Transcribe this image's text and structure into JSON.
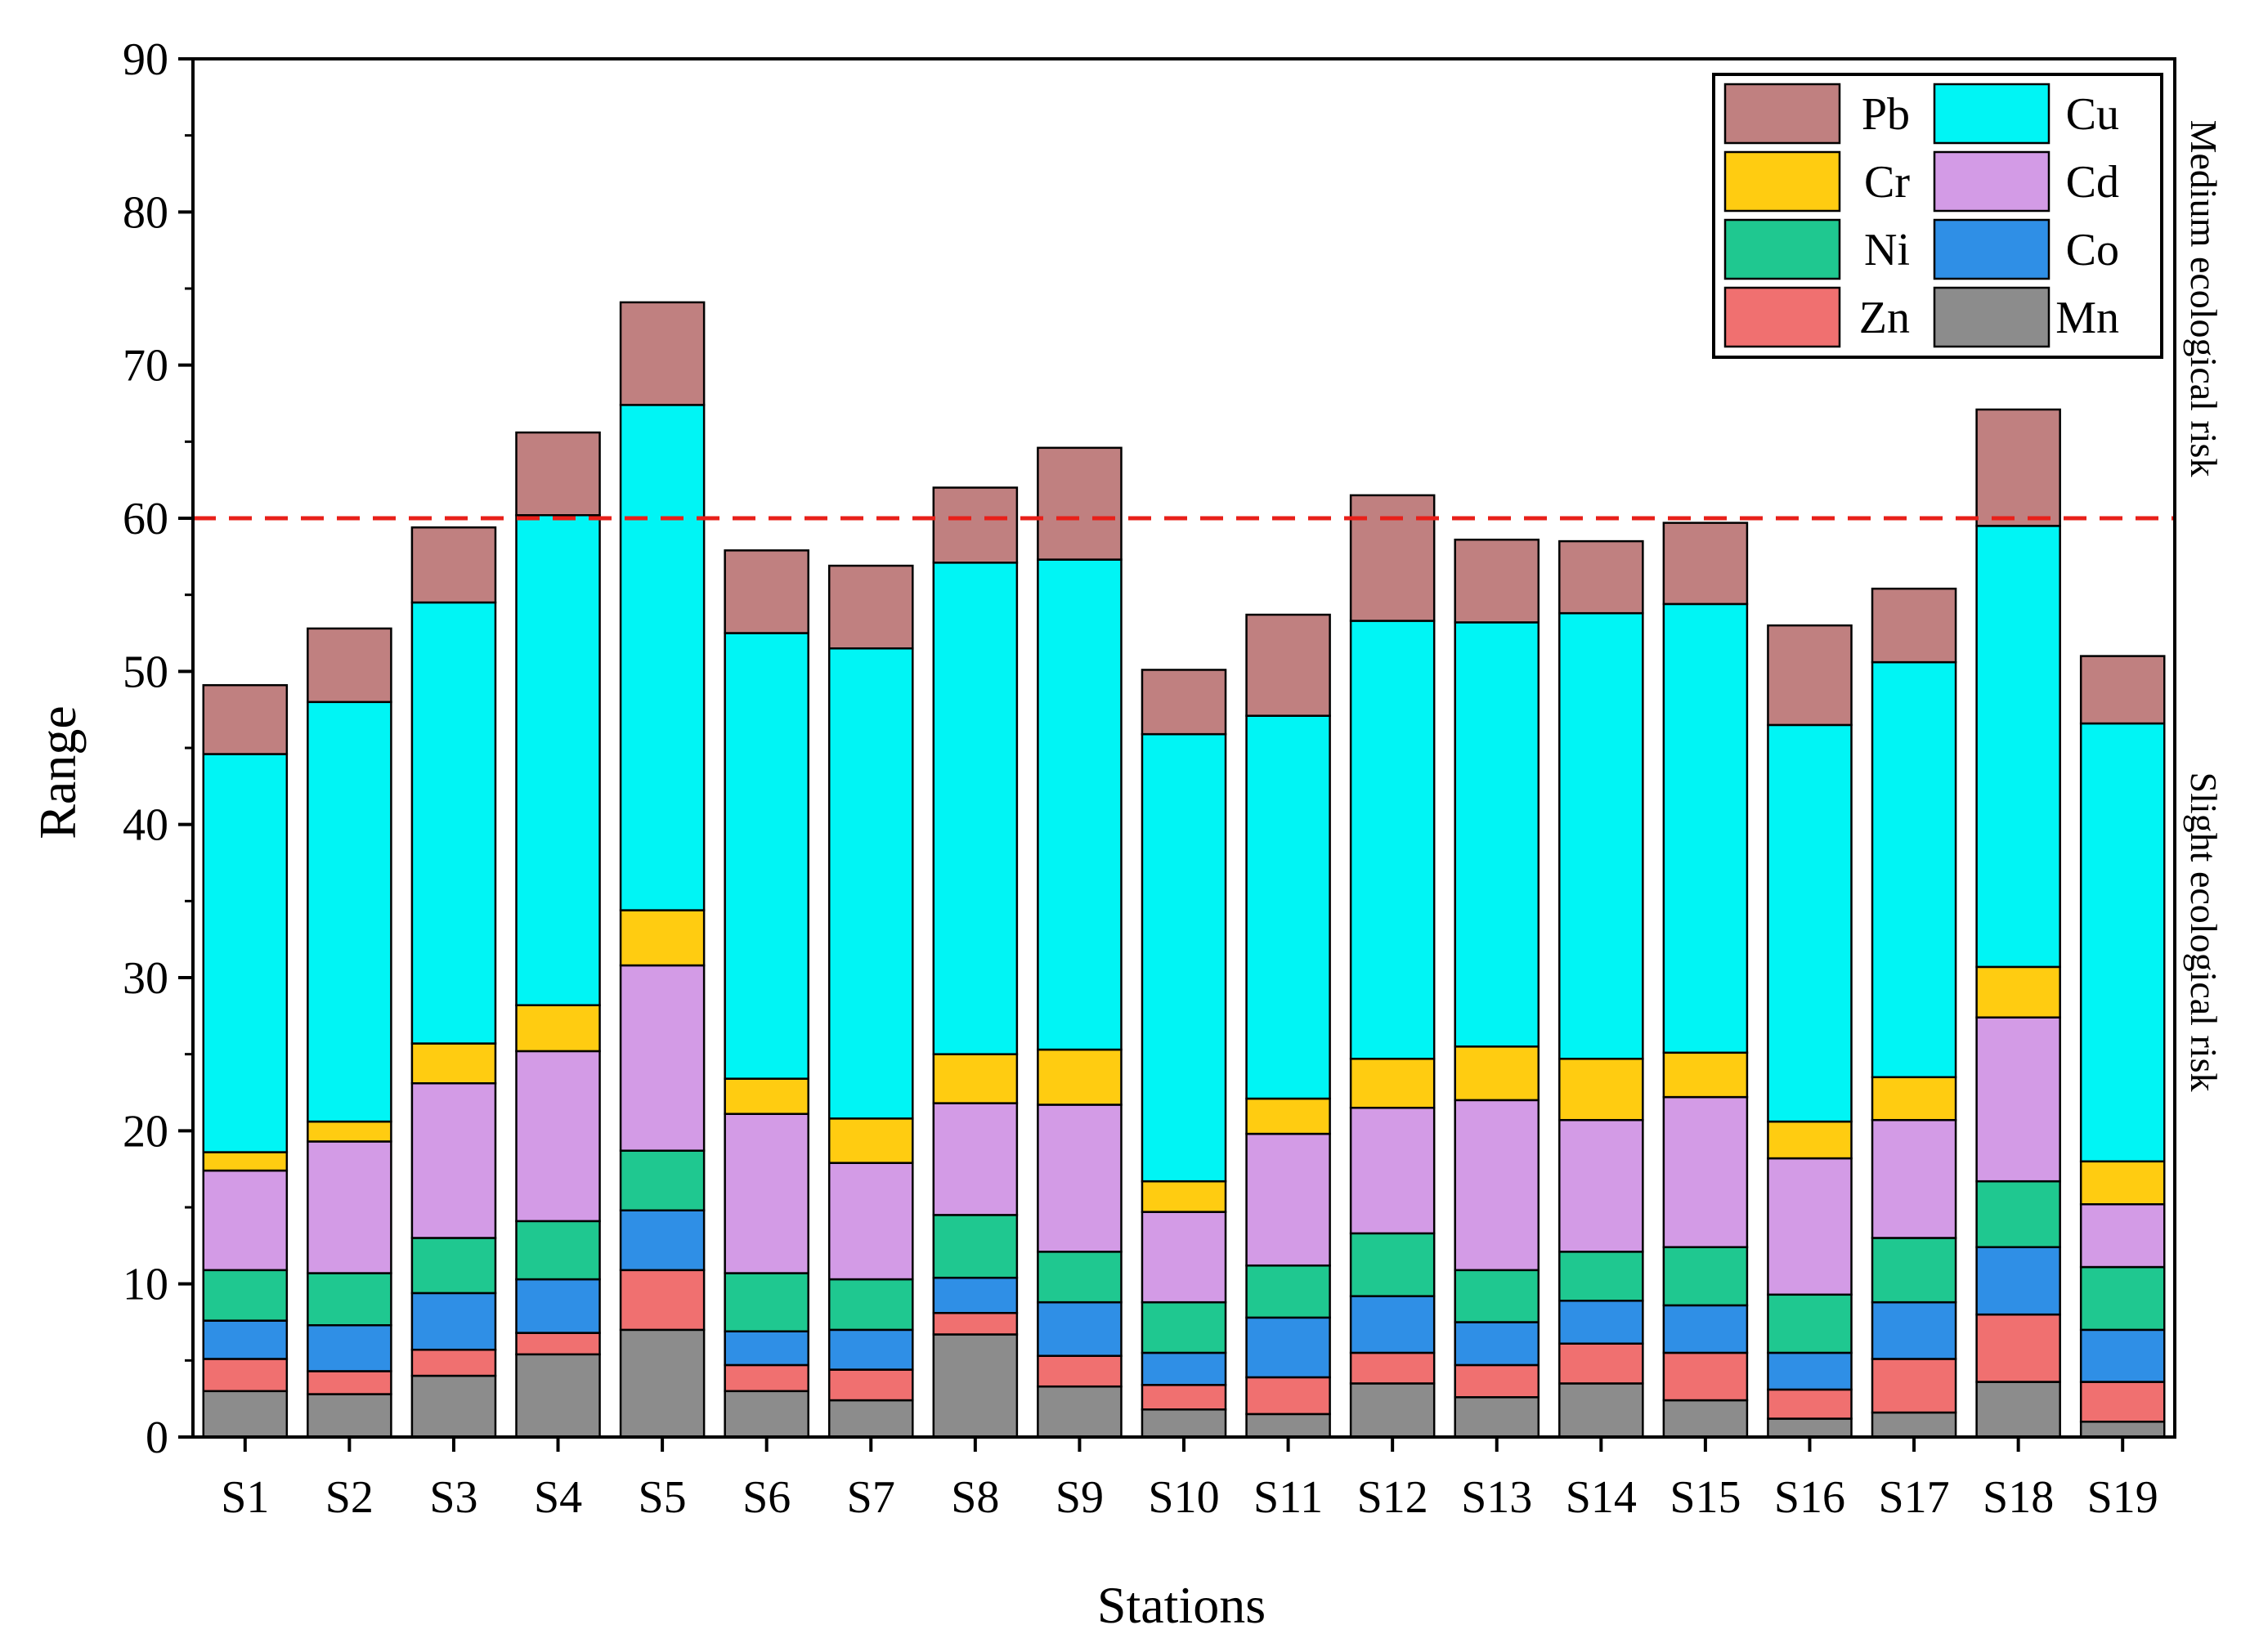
{
  "chart_data": {
    "type": "bar",
    "stacked": true,
    "title": "",
    "xlabel": "Stations",
    "ylabel": "Range",
    "ylim": [
      0,
      90
    ],
    "yticks": [
      0,
      10,
      20,
      30,
      40,
      50,
      60,
      70,
      80,
      90
    ],
    "categories": [
      "S1",
      "S2",
      "S3",
      "S4",
      "S5",
      "S6",
      "S7",
      "S8",
      "S9",
      "S10",
      "S11",
      "S12",
      "S13",
      "S14",
      "S15",
      "S16",
      "S17",
      "S18",
      "S19"
    ],
    "series": [
      {
        "name": "Mn",
        "color": "#8c8c8c",
        "values": [
          3.0,
          2.8,
          4.0,
          5.4,
          7.0,
          3.0,
          2.4,
          6.7,
          3.3,
          1.8,
          1.5,
          3.5,
          2.6,
          3.5,
          2.4,
          1.2,
          1.6,
          3.6,
          1.0
        ]
      },
      {
        "name": "Zn",
        "color": "#f07070",
        "values": [
          2.1,
          1.5,
          1.7,
          1.4,
          3.9,
          1.7,
          2.0,
          1.4,
          2.0,
          1.6,
          2.4,
          2.0,
          2.1,
          2.6,
          3.1,
          1.9,
          3.5,
          4.4,
          2.6
        ]
      },
      {
        "name": "Co",
        "color": "#2f8fe6",
        "values": [
          2.5,
          3.0,
          3.7,
          3.5,
          3.9,
          2.2,
          2.6,
          2.3,
          3.5,
          2.1,
          3.9,
          3.7,
          2.8,
          2.8,
          3.1,
          2.4,
          3.7,
          4.4,
          3.4
        ]
      },
      {
        "name": "Ni",
        "color": "#1fc890",
        "values": [
          3.3,
          3.4,
          3.6,
          3.8,
          3.9,
          3.8,
          3.3,
          4.1,
          3.3,
          3.3,
          3.4,
          4.1,
          3.4,
          3.2,
          3.8,
          3.8,
          4.2,
          4.3,
          4.1
        ]
      },
      {
        "name": "Cd",
        "color": "#d39be6",
        "values": [
          6.5,
          8.6,
          10.1,
          11.1,
          12.1,
          10.4,
          7.6,
          7.3,
          9.6,
          5.9,
          8.6,
          8.2,
          11.1,
          8.6,
          9.8,
          8.9,
          7.7,
          10.7,
          4.1
        ]
      },
      {
        "name": "Cr",
        "color": "#ffcc11",
        "values": [
          1.2,
          1.3,
          2.6,
          3.0,
          3.6,
          2.3,
          2.9,
          3.2,
          3.6,
          2.0,
          2.3,
          3.2,
          3.5,
          4.0,
          2.9,
          2.4,
          2.8,
          3.3,
          2.8
        ]
      },
      {
        "name": "Cu",
        "color": "#00f5f5",
        "values": [
          26.0,
          27.4,
          28.8,
          32.0,
          33.0,
          29.1,
          30.7,
          32.1,
          32.0,
          29.2,
          25.0,
          28.6,
          27.7,
          29.1,
          29.3,
          25.9,
          27.1,
          28.8,
          28.6
        ]
      },
      {
        "name": "Pb",
        "color": "#c08080",
        "values": [
          4.5,
          4.8,
          4.9,
          5.4,
          6.7,
          5.4,
          5.4,
          4.9,
          7.3,
          4.2,
          6.6,
          8.2,
          5.4,
          4.7,
          5.3,
          6.5,
          4.8,
          7.6,
          4.4
        ]
      }
    ],
    "legend": {
      "placement": "top-right",
      "entries": [
        "Pb",
        "Cu",
        "Cr",
        "Cd",
        "Ni",
        "Co",
        "Zn",
        "Mn"
      ]
    },
    "threshold": {
      "value": 60,
      "color": "#e8201a",
      "style": "dashed"
    },
    "annotations": [
      {
        "text": "Medium ecological risk",
        "side": "right",
        "region": "upper"
      },
      {
        "text": "Slight ecological risk",
        "side": "right",
        "region": "lower"
      }
    ],
    "grid": false
  }
}
